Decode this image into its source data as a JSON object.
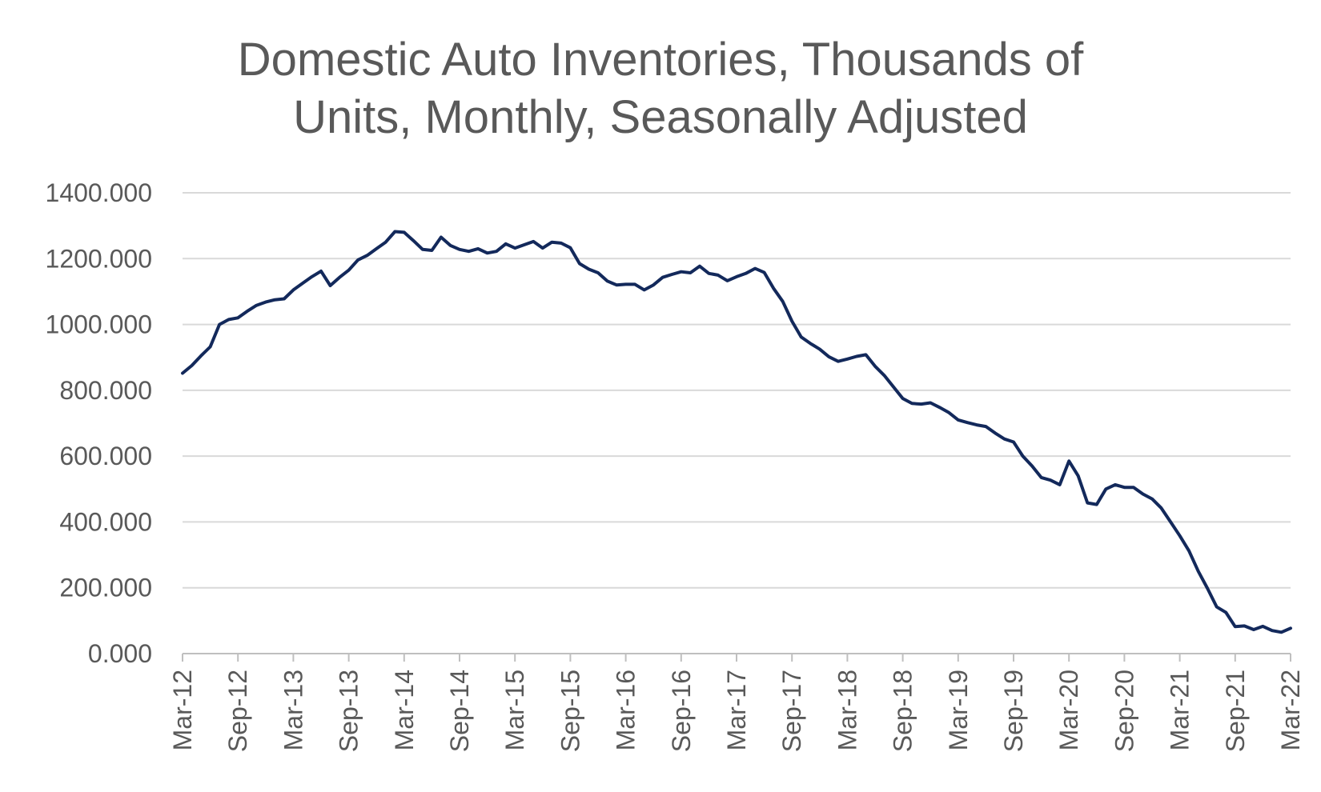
{
  "chart_data": {
    "type": "line",
    "title_lines": [
      "Domestic Auto Inventories, Thousands of",
      "Units, Monthly, Seasonally Adjusted"
    ],
    "xlabel": "",
    "ylabel": "",
    "ylim": [
      0,
      1400
    ],
    "yticks": [
      {
        "value": 0,
        "label": "0.000"
      },
      {
        "value": 200,
        "label": "200.000"
      },
      {
        "value": 400,
        "label": "400.000"
      },
      {
        "value": 600,
        "label": "600.000"
      },
      {
        "value": 800,
        "label": "800.000"
      },
      {
        "value": 1000,
        "label": "1000.000"
      },
      {
        "value": 1200,
        "label": "1200.000"
      },
      {
        "value": 1400,
        "label": "1400.000"
      }
    ],
    "xrange": [
      "2012-03",
      "2022-03"
    ],
    "xticks": [
      {
        "date": "2012-03",
        "label": "Mar-12"
      },
      {
        "date": "2012-09",
        "label": "Sep-12"
      },
      {
        "date": "2013-03",
        "label": "Mar-13"
      },
      {
        "date": "2013-09",
        "label": "Sep-13"
      },
      {
        "date": "2014-03",
        "label": "Mar-14"
      },
      {
        "date": "2014-09",
        "label": "Sep-14"
      },
      {
        "date": "2015-03",
        "label": "Mar-15"
      },
      {
        "date": "2015-09",
        "label": "Sep-15"
      },
      {
        "date": "2016-03",
        "label": "Mar-16"
      },
      {
        "date": "2016-09",
        "label": "Sep-16"
      },
      {
        "date": "2017-03",
        "label": "Mar-17"
      },
      {
        "date": "2017-09",
        "label": "Sep-17"
      },
      {
        "date": "2018-03",
        "label": "Mar-18"
      },
      {
        "date": "2018-09",
        "label": "Sep-18"
      },
      {
        "date": "2019-03",
        "label": "Mar-19"
      },
      {
        "date": "2019-09",
        "label": "Sep-19"
      },
      {
        "date": "2020-03",
        "label": "Mar-20"
      },
      {
        "date": "2020-09",
        "label": "Sep-20"
      },
      {
        "date": "2021-03",
        "label": "Mar-21"
      },
      {
        "date": "2021-09",
        "label": "Sep-21"
      },
      {
        "date": "2022-03",
        "label": "Mar-22"
      }
    ],
    "grid": true,
    "legend": "none",
    "series": [
      {
        "color": "#13295b",
        "x": [
          "2012-03",
          "2012-04",
          "2012-05",
          "2012-06",
          "2012-07",
          "2012-08",
          "2012-09",
          "2012-10",
          "2012-11",
          "2012-12",
          "2013-01",
          "2013-02",
          "2013-03",
          "2013-04",
          "2013-05",
          "2013-06",
          "2013-07",
          "2013-08",
          "2013-09",
          "2013-10",
          "2013-11",
          "2013-12",
          "2014-01",
          "2014-02",
          "2014-03",
          "2014-04",
          "2014-05",
          "2014-06",
          "2014-07",
          "2014-08",
          "2014-09",
          "2014-10",
          "2014-11",
          "2014-12",
          "2015-01",
          "2015-02",
          "2015-03",
          "2015-04",
          "2015-05",
          "2015-06",
          "2015-07",
          "2015-08",
          "2015-09",
          "2015-10",
          "2015-11",
          "2015-12",
          "2016-01",
          "2016-02",
          "2016-03",
          "2016-04",
          "2016-05",
          "2016-06",
          "2016-07",
          "2016-08",
          "2016-09",
          "2016-10",
          "2016-11",
          "2016-12",
          "2017-01",
          "2017-02",
          "2017-03",
          "2017-04",
          "2017-05",
          "2017-06",
          "2017-07",
          "2017-08",
          "2017-09",
          "2017-10",
          "2017-11",
          "2017-12",
          "2018-01",
          "2018-02",
          "2018-03",
          "2018-04",
          "2018-05",
          "2018-06",
          "2018-07",
          "2018-08",
          "2018-09",
          "2018-10",
          "2018-11",
          "2018-12",
          "2019-01",
          "2019-02",
          "2019-03",
          "2019-04",
          "2019-05",
          "2019-06",
          "2019-07",
          "2019-08",
          "2019-09",
          "2019-10",
          "2019-11",
          "2019-12",
          "2020-01",
          "2020-02",
          "2020-03",
          "2020-04",
          "2020-05",
          "2020-06",
          "2020-07",
          "2020-08",
          "2020-09",
          "2020-10",
          "2020-11",
          "2020-12",
          "2021-01",
          "2021-02",
          "2021-03",
          "2021-04",
          "2021-05",
          "2021-06",
          "2021-07",
          "2021-08",
          "2021-09",
          "2021-10",
          "2021-11",
          "2021-12",
          "2022-01",
          "2022-02",
          "2022-03"
        ],
        "values": [
          852,
          875,
          905,
          932,
          1000,
          1015,
          1020,
          1040,
          1058,
          1068,
          1075,
          1078,
          1105,
          1125,
          1145,
          1162,
          1118,
          1143,
          1165,
          1196,
          1210,
          1230,
          1250,
          1282,
          1280,
          1255,
          1228,
          1225,
          1265,
          1240,
          1228,
          1222,
          1230,
          1217,
          1222,
          1245,
          1232,
          1242,
          1252,
          1232,
          1250,
          1247,
          1233,
          1185,
          1168,
          1157,
          1132,
          1120,
          1122,
          1122,
          1105,
          1120,
          1143,
          1152,
          1160,
          1157,
          1177,
          1155,
          1150,
          1133,
          1145,
          1155,
          1170,
          1158,
          1110,
          1070,
          1010,
          962,
          942,
          925,
          902,
          888,
          895,
          903,
          908,
          873,
          845,
          810,
          775,
          760,
          758,
          762,
          748,
          732,
          710,
          702,
          695,
          690,
          670,
          652,
          643,
          600,
          570,
          535,
          527,
          513,
          585,
          540,
          458,
          453,
          500,
          513,
          505,
          505,
          485,
          470,
          442,
          400,
          358,
          312,
          250,
          198,
          142,
          125,
          82,
          84,
          73,
          83,
          70,
          65,
          77
        ]
      }
    ]
  }
}
